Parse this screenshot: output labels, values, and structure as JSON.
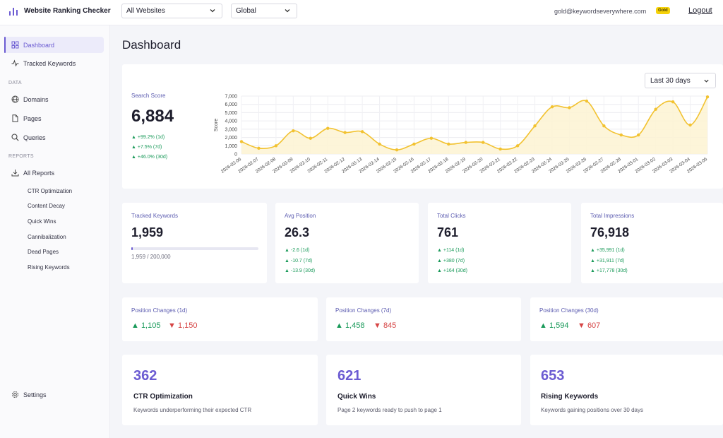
{
  "app": {
    "title": "Website Ranking Checker"
  },
  "header": {
    "website_select": "All Websites",
    "region_select": "Global",
    "user_email": "gold@keywordseverywhere.com",
    "plan_badge": "Gold",
    "logout_label": "Logout"
  },
  "sidebar": {
    "dashboard": "Dashboard",
    "tracked_keywords": "Tracked Keywords",
    "data_section": "DATA",
    "domains": "Domains",
    "pages": "Pages",
    "queries": "Queries",
    "reports_section": "REPORTS",
    "all_reports": "All Reports",
    "report_items": [
      "CTR Optimization",
      "Content Decay",
      "Quick Wins",
      "Cannibalization",
      "Dead Pages",
      "Rising Keywords"
    ],
    "settings": "Settings"
  },
  "page_title": "Dashboard",
  "search_score": {
    "label": "Search Score",
    "value": "6,884",
    "deltas": [
      "▲ +99.2% (1d)",
      "▲ +7.5% (7d)",
      "▲ +46.0% (30d)"
    ],
    "range_label": "Last 30 days"
  },
  "stats": {
    "tracked": {
      "label": "Tracked Keywords",
      "value": "1,959",
      "progress_text": "1,959 / 200,000",
      "progress_fraction": 0.0098
    },
    "avg_position": {
      "label": "Avg Position",
      "value": "26.3",
      "deltas": [
        "▲ -2.6 (1d)",
        "▲ -10.7 (7d)",
        "▲ -13.9 (30d)"
      ]
    },
    "total_clicks": {
      "label": "Total Clicks",
      "value": "761",
      "deltas": [
        "▲ +114 (1d)",
        "▲ +380 (7d)",
        "▲ +164 (30d)"
      ]
    },
    "total_impressions": {
      "label": "Total Impressions",
      "value": "76,918",
      "deltas": [
        "▲ +35,991 (1d)",
        "▲ +31,911 (7d)",
        "▲ +17,778 (30d)"
      ]
    }
  },
  "position_changes": [
    {
      "label": "Position Changes (1d)",
      "up": "▲ 1,105",
      "down": "▼ 1,150"
    },
    {
      "label": "Position Changes (7d)",
      "up": "▲ 1,458",
      "down": "▼ 845"
    },
    {
      "label": "Position Changes (30d)",
      "up": "▲ 1,594",
      "down": "▼ 607"
    }
  ],
  "opportunities": [
    {
      "count": "362",
      "title": "CTR Optimization",
      "desc": "Keywords underperforming their expected CTR"
    },
    {
      "count": "621",
      "title": "Quick Wins",
      "desc": "Page 2 keywords ready to push to page 1"
    },
    {
      "count": "653",
      "title": "Rising Keywords",
      "desc": "Keywords gaining positions over 30 days"
    }
  ],
  "colors": {
    "accent": "#6b5bd2",
    "up": "#1a9a5a",
    "down": "#d64545",
    "line": "#f2c230",
    "fill": "#fdf3d2"
  },
  "chart_data": {
    "type": "area",
    "ylabel": "Score",
    "ylim": [
      0,
      7000
    ],
    "yticks": [
      "0",
      "1,000",
      "2,000",
      "3,000",
      "4,000",
      "5,000",
      "6,000",
      "7,000"
    ],
    "grid": true,
    "x": [
      "2026-02-06",
      "2026-02-07",
      "2026-02-08",
      "2026-02-09",
      "2026-02-10",
      "2026-02-11",
      "2026-02-12",
      "2026-02-13",
      "2026-02-14",
      "2026-02-15",
      "2026-02-16",
      "2026-02-17",
      "2026-02-18",
      "2026-02-19",
      "2026-02-20",
      "2026-02-21",
      "2026-02-22",
      "2026-02-23",
      "2026-02-24",
      "2026-02-25",
      "2026-02-26",
      "2026-02-27",
      "2026-02-28",
      "2026-03-01",
      "2026-03-02",
      "2026-03-03",
      "2026-03-04",
      "2026-03-05"
    ],
    "series": [
      {
        "values": [
          1500,
          700,
          1000,
          2800,
          1900,
          3100,
          2600,
          2700,
          1200,
          500,
          1200,
          1900,
          1200,
          1400,
          1400,
          600,
          1000,
          3400,
          5700,
          5600,
          6400,
          3400,
          2300,
          2300,
          5400,
          6300,
          3500,
          6900
        ]
      }
    ]
  }
}
